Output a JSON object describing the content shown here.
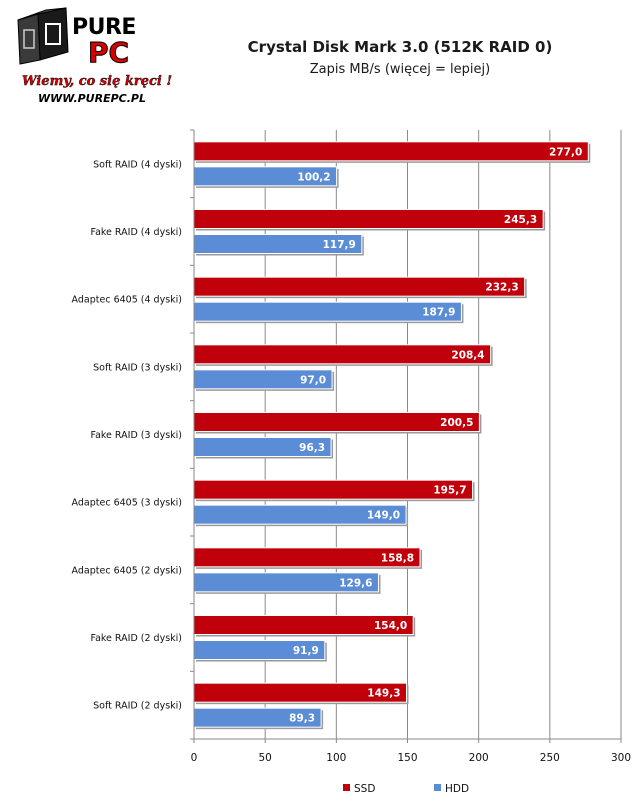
{
  "logo": {
    "brand_top": "PURE",
    "brand_bottom": "PC",
    "slogan": "Wiemy, co się kręci !",
    "url": "WWW.PUREPC.PL"
  },
  "chart_data": {
    "type": "bar",
    "orientation": "horizontal",
    "title": "Crystal Disk Mark 3.0 (512K RAID 0)",
    "subtitle": "Zapis MB/s (więcej = lepiej)",
    "categories": [
      "Soft RAID (4 dyski)",
      "Fake RAID (4 dyski)",
      "Adaptec 6405 (4 dyski)",
      "Soft RAID (3 dyski)",
      "Fake RAID (3 dyski)",
      "Adaptec 6405 (3 dyski)",
      "Adaptec 6405 (2 dyski)",
      "Fake RAID (2 dyski)",
      "Soft RAID (2 dyski)"
    ],
    "series": [
      {
        "name": "SSD",
        "color": "#c0000b",
        "values": [
          277.0,
          245.3,
          232.3,
          208.4,
          200.5,
          195.7,
          158.8,
          154.0,
          149.3
        ],
        "labels": [
          "277,0",
          "245,3",
          "232,3",
          "208,4",
          "200,5",
          "195,7",
          "158,8",
          "154,0",
          "149,3"
        ]
      },
      {
        "name": "HDD",
        "color": "#5b8dd6",
        "values": [
          100.2,
          117.9,
          187.9,
          97.0,
          96.3,
          149.0,
          129.6,
          91.9,
          89.3
        ],
        "labels": [
          "100,2",
          "117,9",
          "187,9",
          "97,0",
          "96,3",
          "149,0",
          "129,6",
          "91,9",
          "89,3"
        ]
      }
    ],
    "xlim": [
      0,
      300
    ],
    "xticks": [
      0,
      50,
      100,
      150,
      200,
      250,
      300
    ],
    "xtick_labels": [
      "0",
      "50",
      "100",
      "150",
      "200",
      "250",
      "300"
    ],
    "grid": true,
    "legend_position": "bottom-right"
  }
}
